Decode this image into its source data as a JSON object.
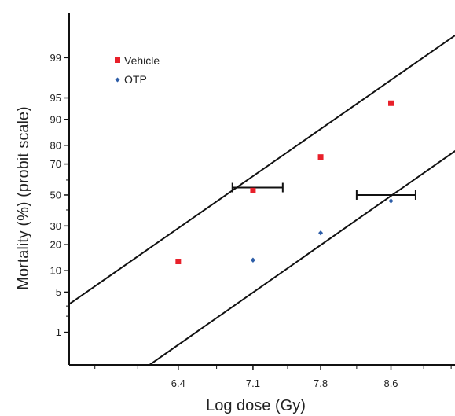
{
  "chart_data": {
    "type": "scatter",
    "xlabel": "Log dose (Gy)",
    "ylabel": "Mortality (%) (probit scale)",
    "x_scale": "log",
    "y_scale": "probit",
    "xlim": [
      5.5,
      9.4
    ],
    "ylim": [
      0.2,
      99.9
    ],
    "x_tick_labels": [
      "6.4",
      "7.1",
      "7.8",
      "8.6"
    ],
    "x_ticks": [
      6.4,
      7.1,
      7.8,
      8.6
    ],
    "y_ticks": [
      1,
      5,
      10,
      20,
      30,
      50,
      70,
      80,
      90,
      95,
      99
    ],
    "y_tick_labels": [
      "1",
      "5",
      "10",
      "20",
      "30",
      "50",
      "70",
      "80",
      "90",
      "95",
      "99"
    ],
    "legend_position": "top-left",
    "series": [
      {
        "name": "Vehicle",
        "color": "#e8202a",
        "marker": "square",
        "x": [
          6.4,
          7.1,
          7.8,
          8.6
        ],
        "y": [
          13,
          53,
          74,
          94
        ],
        "fit_line": {
          "x": [
            5.45,
            9.45
          ],
          "y": [
            2.7,
            99.7
          ]
        },
        "ld50": {
          "x": 7.1,
          "y": 55,
          "error_x": [
            6.9,
            7.4
          ]
        }
      },
      {
        "name": "OTP",
        "color": "#2e5ea8",
        "marker": "diamond",
        "x": [
          7.1,
          7.8,
          8.6
        ],
        "y": [
          13.5,
          26,
          46
        ],
        "fit_line": {
          "x": [
            6.15,
            9.45
          ],
          "y": [
            0.2,
            78.5
          ]
        },
        "ld50": {
          "x": 8.55,
          "y": 50,
          "error_x": [
            8.2,
            8.9
          ]
        }
      }
    ]
  }
}
